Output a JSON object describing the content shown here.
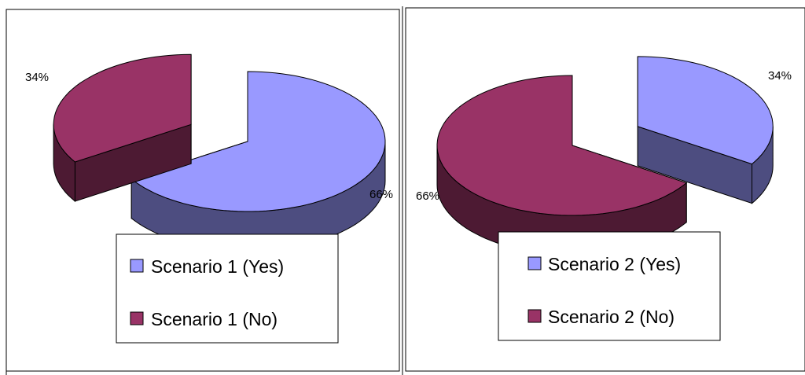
{
  "chart_data": [
    {
      "type": "pie",
      "style": "3d-exploded",
      "slices": [
        {
          "name": "Scenario 1 (Yes)",
          "value": 66,
          "label": "66%",
          "color": "#9999ff",
          "side_color": "#4d4d80",
          "exploded": false
        },
        {
          "name": "Scenario 1 (No)",
          "value": 34,
          "label": "34%",
          "color": "#993366",
          "side_color": "#4d1a33",
          "exploded": true
        }
      ],
      "legend": {
        "placement": "bottom"
      }
    },
    {
      "type": "pie",
      "style": "3d-exploded",
      "slices": [
        {
          "name": "Scenario 2 (Yes)",
          "value": 34,
          "label": "34%",
          "color": "#9999ff",
          "side_color": "#4d4d80",
          "exploded": true
        },
        {
          "name": "Scenario 2 (No)",
          "value": 66,
          "label": "66%",
          "color": "#993366",
          "side_color": "#4d1a33",
          "exploded": false
        }
      ],
      "legend": {
        "placement": "bottom"
      }
    }
  ]
}
